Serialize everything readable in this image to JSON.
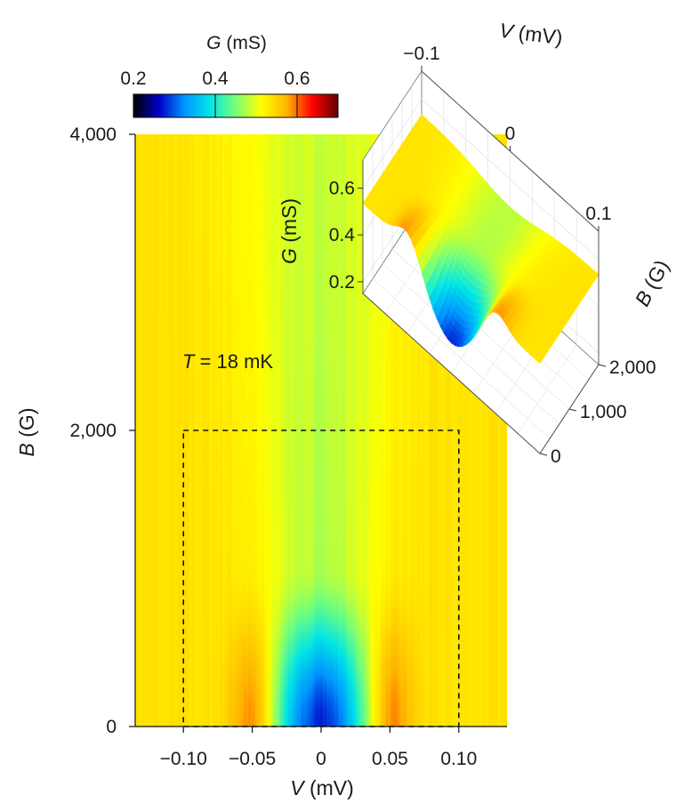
{
  "chart_data": [
    {
      "type": "heatmap",
      "title": "",
      "xlabel_var": "V",
      "xlabel_unit": "(mV)",
      "ylabel_var": "B",
      "ylabel_unit": "(G)",
      "x_range": [
        -0.135,
        0.135
      ],
      "y_range": [
        0,
        4000
      ],
      "x_ticks": [
        -0.1,
        -0.05,
        0,
        0.05,
        0.1
      ],
      "x_tick_labels": [
        "−0.10",
        "−0.05",
        "0",
        "0.05",
        "0.10"
      ],
      "y_ticks": [
        0,
        2000,
        4000
      ],
      "y_tick_labels": [
        "0",
        "2,000",
        "4,000"
      ],
      "annotation_var": "T",
      "annotation_rest": " = 18 mK",
      "dashed_box": {
        "x": [
          -0.1,
          0.1
        ],
        "y": [
          0,
          2000
        ]
      },
      "model": {
        "description_values": "conductance G (mS) vs bias V and field B",
        "background_G": 0.535,
        "zero_bias_min_G": 0.28,
        "zero_bias_high_field_G": 0.47,
        "coherence_peak_V": 0.048,
        "coherence_peak_max_G": 0.62,
        "suppression_field_G": 1100
      },
      "colorbar": {
        "label_var": "G",
        "label_unit": "(mS)",
        "range": [
          0.2,
          0.7
        ],
        "ticks": [
          0.2,
          0.4,
          0.6
        ],
        "tick_labels": [
          "0.2",
          "0.4",
          "0.6"
        ],
        "colormap": [
          "#000000",
          "#0000c8",
          "#0096ff",
          "#00e6e6",
          "#78ff78",
          "#ffff00",
          "#ffb400",
          "#ff0000",
          "#640000"
        ]
      }
    },
    {
      "type": "surface-3d",
      "title": "",
      "x_axis_var": "V",
      "x_axis_unit": "(mV)",
      "x_ticks": [
        -0.1,
        0,
        0.1
      ],
      "x_tick_labels": [
        "−0.1",
        "0",
        "0.1"
      ],
      "y_axis_var": "B",
      "y_axis_unit": "(G)",
      "y_ticks": [
        0,
        1000,
        2000
      ],
      "y_tick_labels": [
        "0",
        "1,000",
        "2,000"
      ],
      "z_axis_var": "G",
      "z_axis_unit": "(mS)",
      "z_ticks": [
        0.2,
        0.4,
        0.6
      ],
      "z_tick_labels": [
        "0.2",
        "0.4",
        "0.6"
      ],
      "z_range": [
        0.15,
        0.72
      ]
    }
  ]
}
